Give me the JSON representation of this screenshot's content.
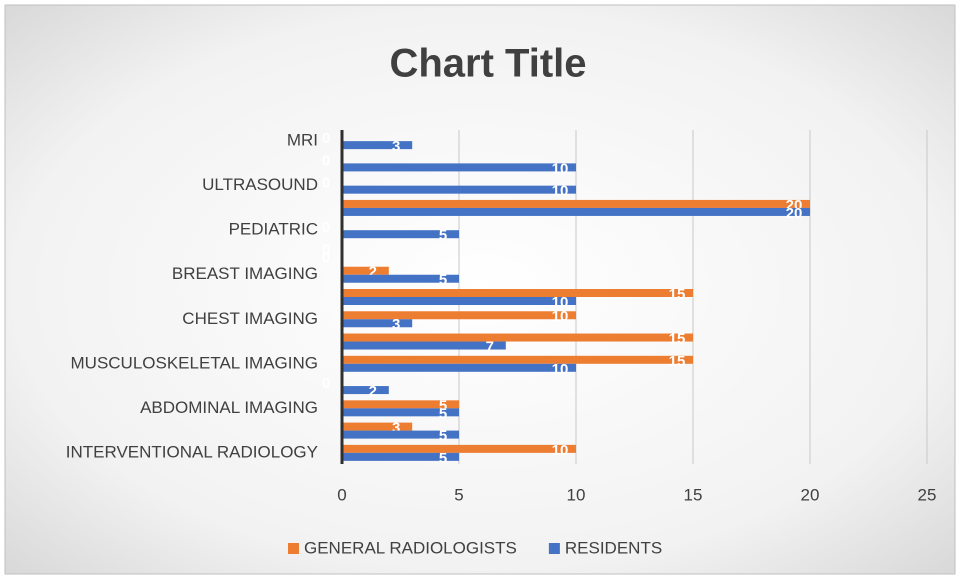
{
  "chart_data": {
    "type": "hbar",
    "title": "Chart Title",
    "categories": [
      "INTERVENTIONAL RADIOLOGY",
      null,
      "ABDOMINAL IMAGING",
      null,
      "MUSCULOSKELETAL IMAGING",
      null,
      "CHEST IMAGING",
      null,
      "BREAST IMAGING",
      null,
      "PEDIATRIC",
      null,
      "ULTRASOUND",
      null,
      "MRI"
    ],
    "series": [
      {
        "name": "GENERAL RADIOLOGISTS",
        "color": "#ED7D31",
        "values": [
          10,
          3,
          5,
          0,
          15,
          15,
          10,
          15,
          2,
          0,
          0,
          20,
          0,
          0,
          0
        ]
      },
      {
        "name": "RESIDENTS",
        "color": "#4472C4",
        "values": [
          5,
          5,
          5,
          2,
          10,
          7,
          3,
          10,
          5,
          0,
          5,
          20,
          10,
          10,
          3
        ]
      }
    ],
    "xlim": [
      0,
      25
    ],
    "xticks": [
      0,
      5,
      10,
      15,
      20,
      25
    ],
    "grid": true,
    "legend": "bottom"
  }
}
